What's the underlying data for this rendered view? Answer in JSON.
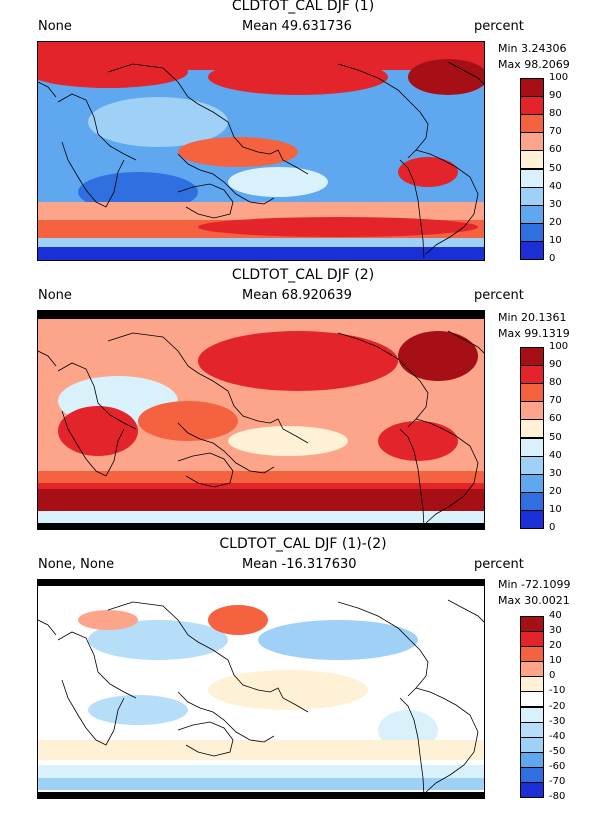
{
  "panels": [
    {
      "title": "CLDTOT_CAL DJF (1)",
      "left_label": "None",
      "mean": "Mean 49.631736",
      "units": "percent",
      "min": "Min 3.24306",
      "max": "Max 98.2069",
      "has_black_bands": false,
      "colorbar": {
        "ticks": [
          "100",
          "90",
          "80",
          "70",
          "60",
          "50",
          "40",
          "30",
          "20",
          "10",
          "0"
        ],
        "colors": [
          "#a50f15",
          "#e3242b",
          "#f4623f",
          "#fca58a",
          "#fff1d6",
          "#d9f1fb",
          "#9fd0f5",
          "#5fa7ef",
          "#2f6fe0",
          "#1a2fd6"
        ]
      },
      "field": "cloud1"
    },
    {
      "title": "CLDTOT_CAL DJF (2)",
      "left_label": "None",
      "mean": "Mean 68.920639",
      "units": "percent",
      "min": "Min 20.1361",
      "max": "Max 99.1319",
      "has_black_bands": true,
      "colorbar": {
        "ticks": [
          "100",
          "90",
          "80",
          "70",
          "60",
          "50",
          "40",
          "30",
          "20",
          "10",
          "0"
        ],
        "colors": [
          "#a50f15",
          "#e3242b",
          "#f4623f",
          "#fca58a",
          "#fff1d6",
          "#d9f1fb",
          "#9fd0f5",
          "#5fa7ef",
          "#2f6fe0",
          "#1a2fd6"
        ]
      },
      "field": "cloud2"
    },
    {
      "title": "CLDTOT_CAL DJF (1)-(2)",
      "left_label": "None, None",
      "mean": "Mean -16.317630",
      "units": "percent",
      "min": "Min -72.1099",
      "max": "Max 30.0021",
      "has_black_bands": true,
      "colorbar": {
        "ticks": [
          "40",
          "30",
          "20",
          "10",
          "0",
          "-10",
          "-20",
          "-30",
          "-40",
          "-50",
          "-60",
          "-70",
          "-80"
        ],
        "colors": [
          "#a50f15",
          "#e3242b",
          "#f4623f",
          "#fca58a",
          "#fff1d6",
          "#ffffff",
          "#d9f1fb",
          "#b7def9",
          "#9fd0f5",
          "#5fa7ef",
          "#2f6fe0",
          "#1a2fd6"
        ]
      },
      "field": "diff"
    }
  ]
}
